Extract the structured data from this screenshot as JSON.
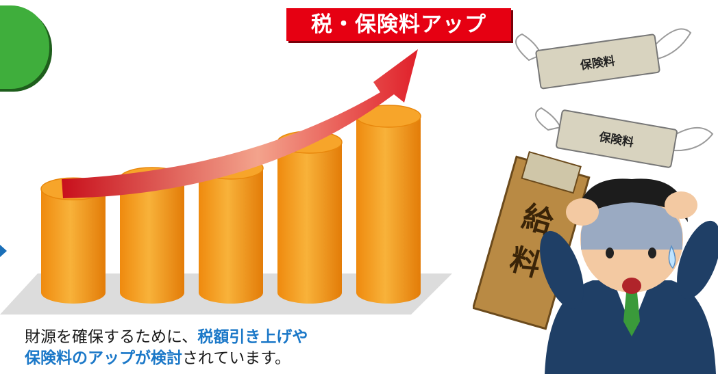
{
  "badge": {
    "text": "税・保険料アップ"
  },
  "caption": {
    "part1": "財源を確保するために、",
    "part2": "税額引き上げや",
    "part3": "保険料のアップが検討",
    "part4": "されています。"
  },
  "illustration": {
    "bill_label_1": "保険料",
    "bill_label_2": "保険料",
    "envelope_char_1": "給",
    "envelope_char_2": "料"
  },
  "colors": {
    "badge_red": "#e60012",
    "cylinder_orange": "#f59a17",
    "arrow_red": "#e0202a",
    "highlight_blue": "#1b78c8",
    "accent_green": "#3fae3c"
  },
  "chart_data": {
    "type": "bar",
    "categories": [
      "",
      "",
      "",
      "",
      ""
    ],
    "values": [
      1,
      1.1,
      1.2,
      1.45,
      1.7
    ]
  }
}
